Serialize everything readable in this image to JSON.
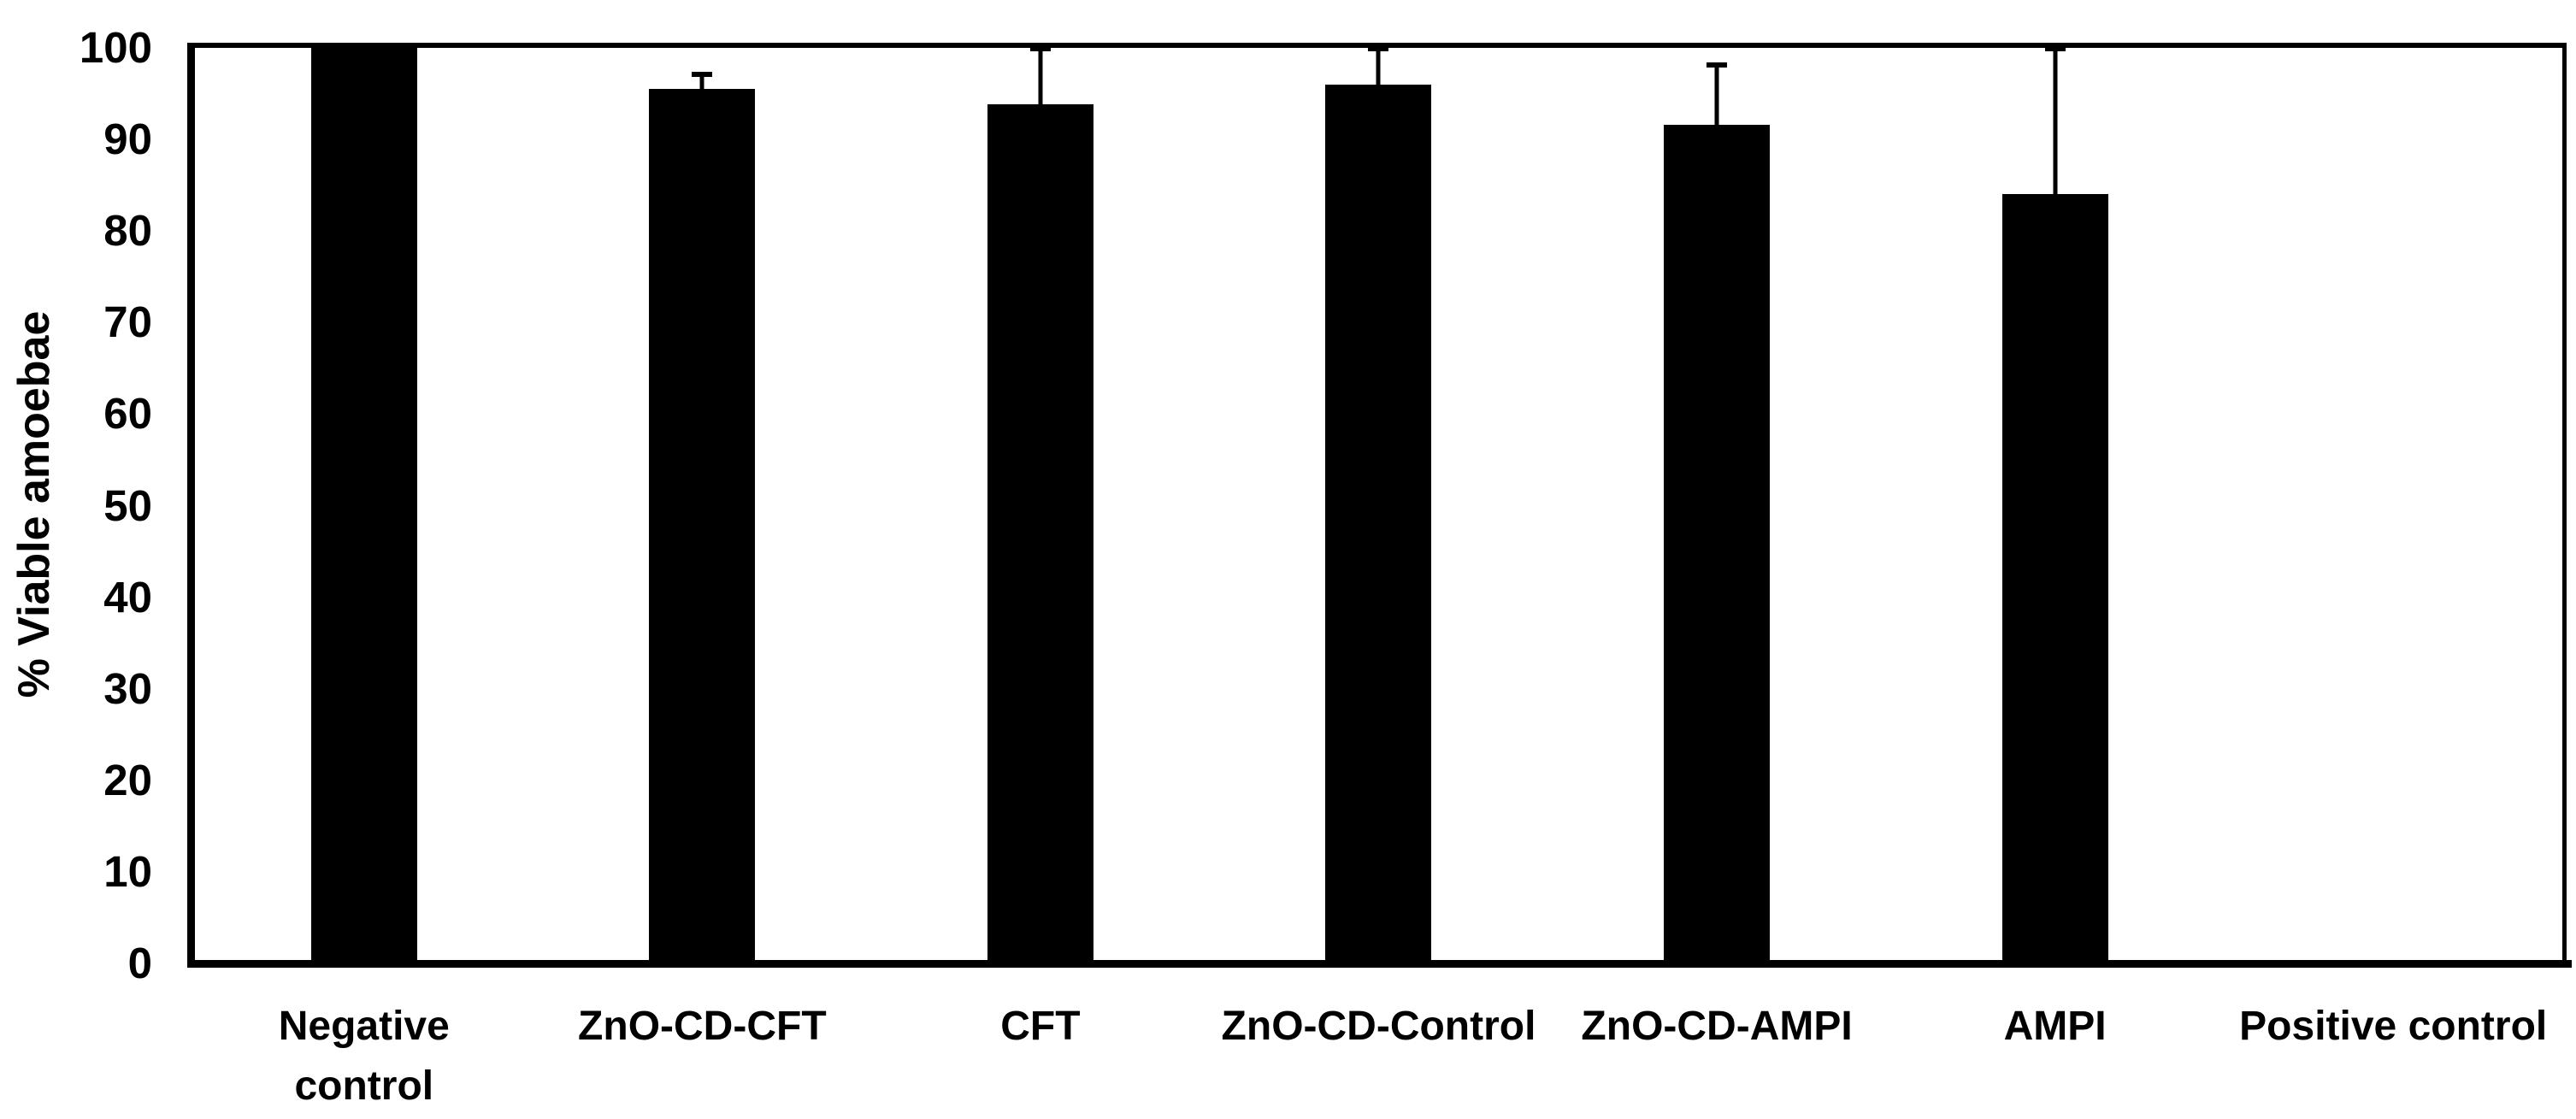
{
  "figure": {
    "background_color": "#ffffff",
    "ink_color": "#000000"
  },
  "chart_data": {
    "type": "bar",
    "ylabel": "% Viable amoebae",
    "ylim": [
      0,
      100
    ],
    "yticks": [
      0,
      10,
      20,
      30,
      40,
      50,
      60,
      70,
      80,
      90,
      100
    ],
    "grid": false,
    "legend": "none",
    "bar_color": "#000000",
    "categories": [
      "Negative\ncontrol",
      "ZnO-CD-CFT",
      "CFT",
      "ZnO-CD-Control",
      "ZnO-CD-AMPI",
      "AMPI",
      "Positive control"
    ],
    "values": [
      100,
      95.5,
      93.8,
      96,
      91.6,
      84,
      0
    ],
    "error_bar_tops": [
      null,
      97.2,
      100,
      100,
      98.2,
      100,
      null
    ]
  }
}
